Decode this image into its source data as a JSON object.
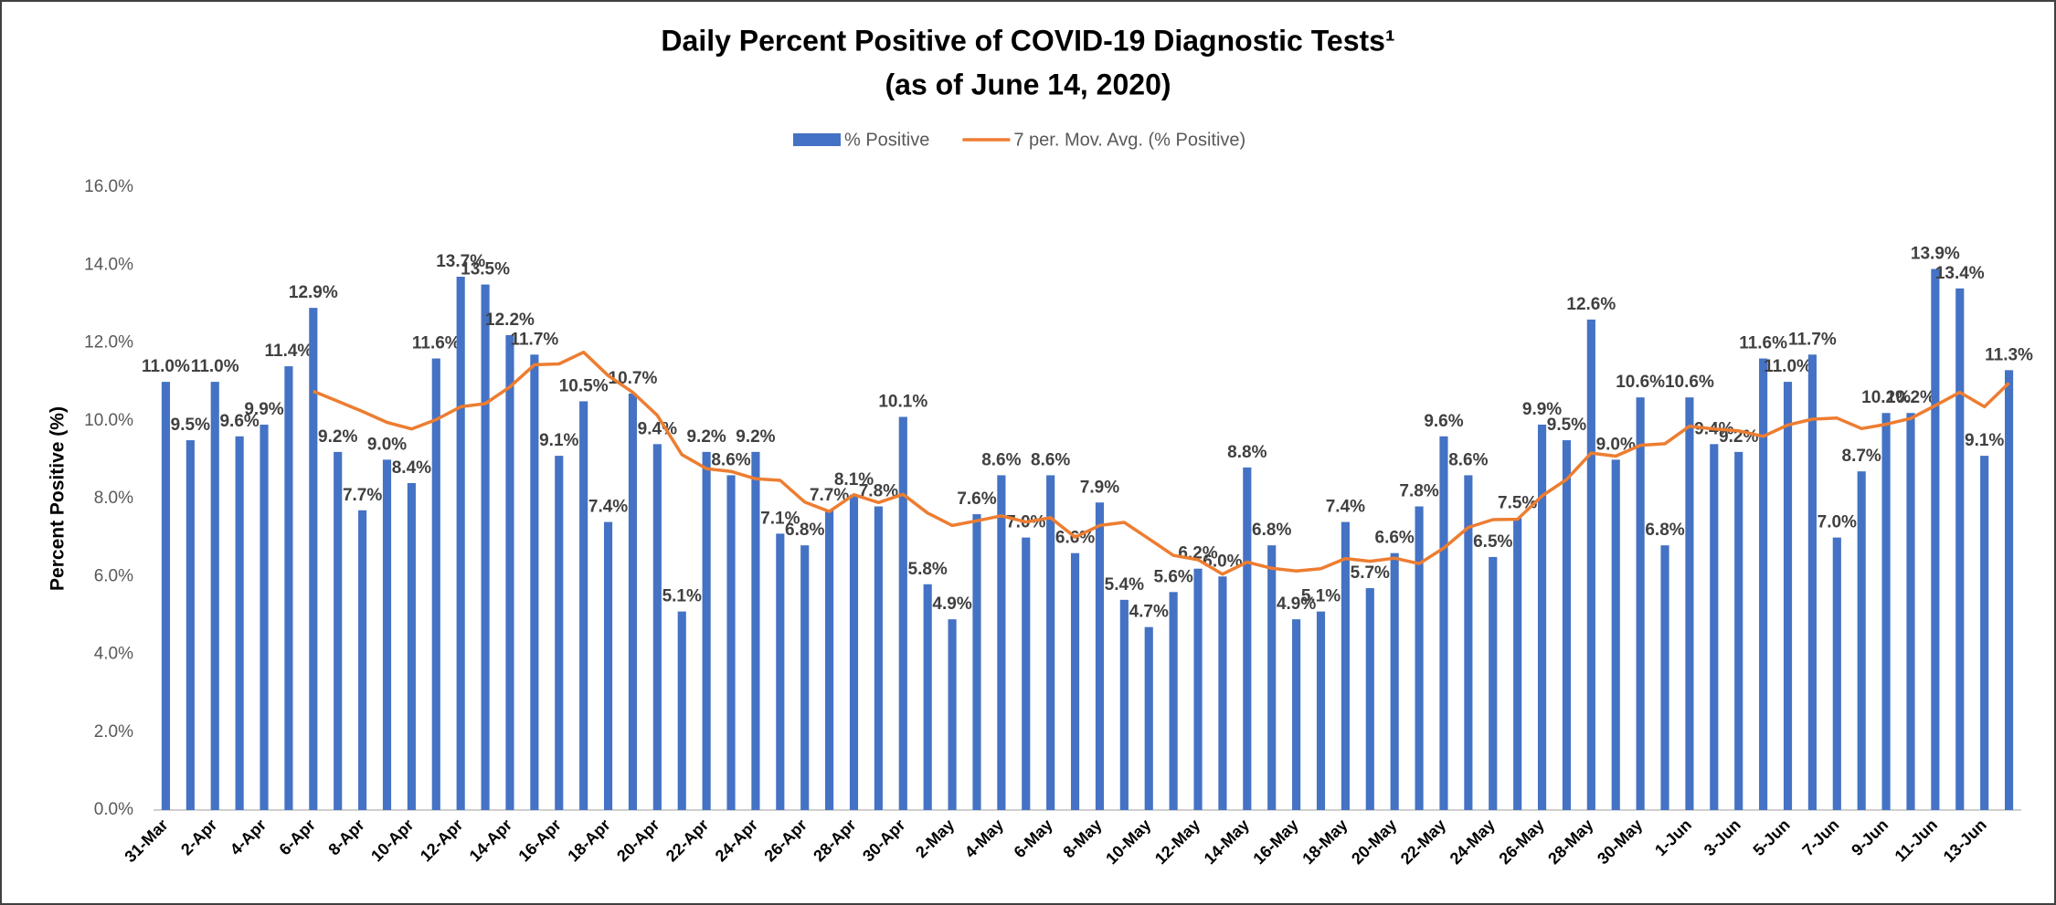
{
  "chart_data": {
    "type": "bar",
    "title": "Daily Percent Positive of COVID-19 Diagnostic Tests¹",
    "subtitle": "(as of June 14, 2020)",
    "y_label": "Percent Positive (%)",
    "categories": [
      "31-Mar",
      null,
      "2-Apr",
      null,
      "4-Apr",
      null,
      "6-Apr",
      null,
      "8-Apr",
      null,
      "10-Apr",
      null,
      "12-Apr",
      null,
      "14-Apr",
      null,
      "16-Apr",
      null,
      "18-Apr",
      null,
      "20-Apr",
      null,
      "22-Apr",
      null,
      "24-Apr",
      null,
      "26-Apr",
      null,
      "28-Apr",
      null,
      "30-Apr",
      null,
      "2-May",
      null,
      "4-May",
      null,
      "6-May",
      null,
      "8-May",
      null,
      "10-May",
      null,
      "12-May",
      null,
      "14-May",
      null,
      "16-May",
      null,
      "18-May",
      null,
      "20-May",
      null,
      "22-May",
      null,
      "24-May",
      null,
      "26-May",
      null,
      "28-May",
      null,
      "30-May",
      null,
      "1-Jun",
      null,
      "3-Jun",
      null,
      "5-Jun",
      null,
      "7-Jun",
      null,
      "9-Jun",
      null,
      "11-Jun",
      null,
      "13-Jun",
      null
    ],
    "series": [
      {
        "name": "% Positive",
        "color": "#4472c4",
        "type": "bar",
        "values": [
          11.0,
          9.5,
          11.0,
          9.6,
          9.9,
          11.4,
          12.9,
          9.2,
          7.7,
          9.0,
          8.4,
          11.6,
          13.7,
          13.5,
          12.2,
          11.7,
          9.1,
          10.5,
          7.4,
          10.7,
          9.4,
          5.1,
          9.2,
          8.6,
          9.2,
          7.1,
          6.8,
          7.7,
          8.1,
          7.8,
          10.1,
          5.8,
          4.9,
          7.6,
          8.6,
          7.0,
          8.6,
          6.6,
          7.9,
          5.4,
          4.7,
          5.6,
          6.2,
          6.0,
          8.8,
          6.8,
          4.9,
          5.1,
          7.4,
          5.7,
          6.6,
          7.8,
          9.6,
          8.6,
          6.5,
          7.5,
          9.9,
          9.5,
          12.6,
          9.0,
          10.6,
          6.8,
          10.6,
          9.4,
          9.2,
          11.6,
          11.0,
          11.7,
          7.0,
          8.7,
          10.2,
          10.2,
          13.9,
          13.4,
          9.1,
          11.3
        ],
        "value_labels": [
          "11.0%",
          "9.5%",
          "11.0%",
          "9.6%",
          "9.9%",
          "11.4%",
          "12.9%",
          "9.2%",
          "7.7%",
          "9.0%",
          "8.4%",
          "11.6%",
          "13.7%",
          "13.5%",
          "12.2%",
          "11.7%",
          "9.1%",
          "10.5%",
          "7.4%",
          "10.7%",
          "9.4%",
          "5.1%",
          "9.2%",
          "8.6%",
          "9.2%",
          "7.1%",
          "6.8%",
          "7.7%",
          "8.1%",
          "7.8%",
          "10.1%",
          "5.8%",
          "4.9%",
          "7.6%",
          "8.6%",
          "7.0%",
          "8.6%",
          "6.6%",
          "7.9%",
          "5.4%",
          "4.7%",
          "5.6%",
          "6.2%",
          "6.0%",
          "8.8%",
          "6.8%",
          "4.9%",
          "5.1%",
          "7.4%",
          "5.7%",
          "6.6%",
          "7.8%",
          "9.6%",
          "8.6%",
          "6.5%",
          "7.5%",
          "9.9%",
          "9.5%",
          "12.6%",
          "9.0%",
          "10.6%",
          "6.8%",
          "10.6%",
          "9.4%",
          "9.2%",
          "11.6%",
          "11.0%",
          "11.7%",
          "7.0%",
          "8.7%",
          "10.2%",
          "10.2%",
          "13.9%",
          "13.4%",
          "9.1%",
          "11.3%"
        ]
      },
      {
        "name": "7 per. Mov. Avg. (% Positive)",
        "color": "#ed7d31",
        "type": "line",
        "values": [
          null,
          null,
          null,
          null,
          null,
          null,
          10.76,
          10.5,
          10.24,
          9.96,
          9.79,
          10.03,
          10.36,
          10.44,
          10.87,
          11.44,
          11.46,
          11.76,
          11.16,
          10.73,
          10.14,
          9.13,
          8.77,
          8.7,
          8.51,
          8.47,
          7.91,
          7.67,
          8.1,
          7.9,
          8.11,
          7.63,
          7.31,
          7.43,
          7.56,
          7.4,
          7.51,
          7.01,
          7.31,
          7.39,
          6.97,
          6.54,
          6.43,
          6.06,
          6.37,
          6.21,
          6.14,
          6.2,
          6.46,
          6.39,
          6.47,
          6.33,
          6.73,
          7.26,
          7.46,
          7.47,
          8.07,
          8.49,
          9.17,
          9.09,
          9.37,
          9.41,
          9.86,
          9.79,
          9.74,
          9.6,
          9.89,
          10.04,
          10.07,
          9.8,
          9.91,
          10.06,
          10.39,
          10.73,
          10.36,
          10.97
        ]
      }
    ],
    "ylim": [
      0,
      16
    ],
    "yticks": [
      {
        "value": 0,
        "label": "0.0%"
      },
      {
        "value": 2,
        "label": "2.0%"
      },
      {
        "value": 4,
        "label": "4.0%"
      },
      {
        "value": 6,
        "label": "6.0%"
      },
      {
        "value": 8,
        "label": "8.0%"
      },
      {
        "value": 10,
        "label": "10.0%"
      },
      {
        "value": 12,
        "label": "12.0%"
      },
      {
        "value": 14,
        "label": "14.0%"
      },
      {
        "value": 16,
        "label": "16.0%"
      }
    ],
    "grid": false,
    "legend": "top"
  }
}
